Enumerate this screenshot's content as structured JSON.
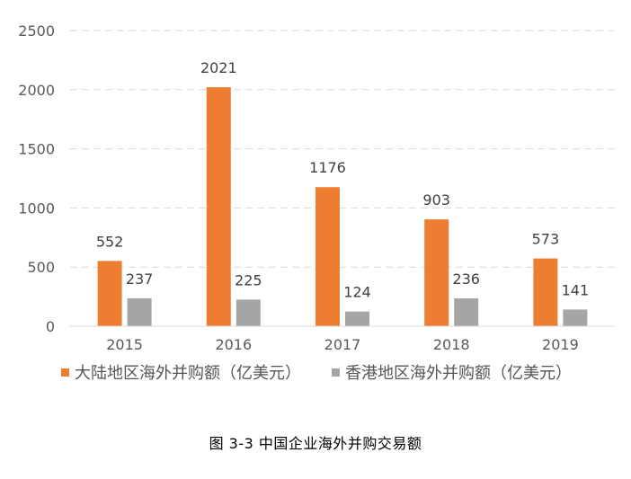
{
  "chart_data": {
    "type": "bar",
    "categories": [
      "2015",
      "2016",
      "2017",
      "2018",
      "2019"
    ],
    "series": [
      {
        "name": "大陆地区海外并购额（亿美元）",
        "values": [
          552,
          2021,
          1176,
          903,
          573
        ],
        "color": "#ED7D31"
      },
      {
        "name": "香港地区海外并购额（亿美元）",
        "values": [
          237,
          225,
          124,
          236,
          141
        ],
        "color": "#A5A5A5"
      }
    ],
    "ylim": [
      0,
      2500
    ],
    "yticks": [
      0,
      500,
      1000,
      1500,
      2000,
      2500
    ],
    "grid": true,
    "legend_position": "bottom",
    "title": "",
    "xlabel": "",
    "ylabel": ""
  },
  "caption": "图 3-3 中国企业海外并购交易额"
}
